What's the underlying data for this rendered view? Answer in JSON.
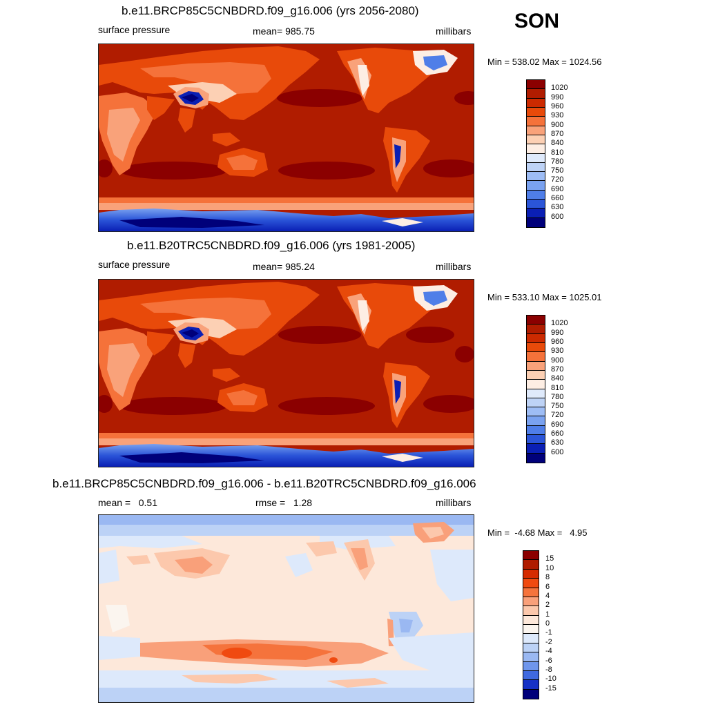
{
  "season": "SON",
  "panels": [
    {
      "title": "b.e11.BRCP85C5CNBDRD.f09_g16.006 (yrs 2056-2080)",
      "left_label": "surface pressure",
      "center_label": "mean= 985.75",
      "right_label": "millibars",
      "minmax": "Min = 538.02 Max = 1024.56",
      "legend": {
        "labels": [
          "1020",
          "990",
          "960",
          "930",
          "900",
          "870",
          "840",
          "810",
          "780",
          "750",
          "720",
          "690",
          "660",
          "630",
          "600"
        ],
        "colors": [
          "#8b0000",
          "#b01c00",
          "#cc2a00",
          "#e84a0a",
          "#f5723a",
          "#f9a27a",
          "#fcd0b4",
          "#fdeee4",
          "#dfeafb",
          "#bed3f6",
          "#9ebdf5",
          "#7aa2f0",
          "#4f7ee8",
          "#2b55d8",
          "#0a1fb4",
          "#00007a"
        ]
      },
      "chart_data": {
        "type": "heatmap",
        "variable": "surface pressure",
        "units": "millibars",
        "mean": 985.75,
        "min": 538.02,
        "max": 1024.56,
        "contour_levels": [
          600,
          630,
          660,
          690,
          720,
          750,
          780,
          810,
          840,
          870,
          900,
          930,
          960,
          990,
          1020
        ]
      }
    },
    {
      "title": "b.e11.B20TRC5CNBDRD.f09_g16.006 (yrs 1981-2005)",
      "left_label": "surface pressure",
      "center_label": "mean= 985.24",
      "right_label": "millibars",
      "minmax": "Min = 533.10 Max = 1025.01",
      "legend": {
        "labels": [
          "1020",
          "990",
          "960",
          "930",
          "900",
          "870",
          "840",
          "810",
          "780",
          "750",
          "720",
          "690",
          "660",
          "630",
          "600"
        ],
        "colors": [
          "#8b0000",
          "#b01c00",
          "#cc2a00",
          "#e84a0a",
          "#f5723a",
          "#f9a27a",
          "#fcd0b4",
          "#fdeee4",
          "#dfeafb",
          "#bed3f6",
          "#9ebdf5",
          "#7aa2f0",
          "#4f7ee8",
          "#2b55d8",
          "#0a1fb4",
          "#00007a"
        ]
      },
      "chart_data": {
        "type": "heatmap",
        "variable": "surface pressure",
        "units": "millibars",
        "mean": 985.24,
        "min": 533.1,
        "max": 1025.01,
        "contour_levels": [
          600,
          630,
          660,
          690,
          720,
          750,
          780,
          810,
          840,
          870,
          900,
          930,
          960,
          990,
          1020
        ]
      }
    },
    {
      "title": "b.e11.BRCP85C5CNBDRD.f09_g16.006 - b.e11.B20TRC5CNBDRD.f09_g16.006",
      "left_label": "mean =   0.51",
      "center_label": "rmse =   1.28",
      "right_label": "millibars",
      "minmax": "Min =  -4.68 Max =   4.95",
      "legend": {
        "labels": [
          "15",
          "10",
          "8",
          "6",
          "4",
          "2",
          "1",
          "0",
          "-1",
          "-2",
          "-4",
          "-6",
          "-8",
          "-10",
          "-15"
        ],
        "colors": [
          "#8b0000",
          "#b01c00",
          "#d52b00",
          "#f04a10",
          "#f5733c",
          "#f9a07a",
          "#fcc8ac",
          "#fde8da",
          "#fbf5ef",
          "#dde9fb",
          "#bcd2f6",
          "#9ab8f2",
          "#6f96ec",
          "#3f69e0",
          "#1632c6",
          "#00007a"
        ]
      },
      "chart_data": {
        "type": "heatmap",
        "variable": "surface pressure difference",
        "units": "millibars",
        "mean": 0.51,
        "rmse": 1.28,
        "min": -4.68,
        "max": 4.95,
        "contour_levels": [
          -15,
          -10,
          -8,
          -6,
          -4,
          -2,
          -1,
          0,
          1,
          2,
          4,
          6,
          8,
          10,
          15
        ]
      }
    }
  ]
}
